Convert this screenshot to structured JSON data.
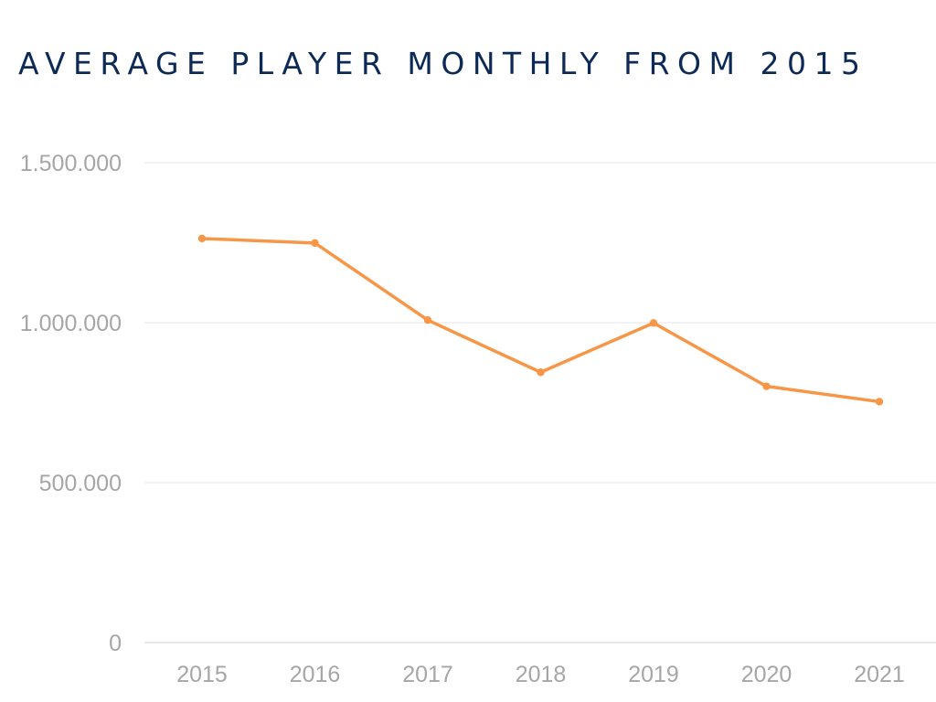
{
  "chart_data": {
    "type": "line",
    "title": "AVERAGE PLAYER MONTHLY FROM 2015",
    "xlabel": "",
    "ylabel": "",
    "categories": [
      "2015",
      "2016",
      "2017",
      "2018",
      "2019",
      "2020",
      "2021"
    ],
    "series": [
      {
        "values": [
          1263000,
          1249000,
          1008000,
          845000,
          999000,
          801000,
          753000
        ],
        "color": "#f79646"
      }
    ],
    "ylim": [
      0,
      1500000
    ],
    "yticks": [
      0,
      500000,
      1000000,
      1500000
    ],
    "ytick_labels": [
      "0",
      "500.000",
      "1.000.000",
      "1.500.000"
    ],
    "grid": true,
    "legend": "none"
  }
}
